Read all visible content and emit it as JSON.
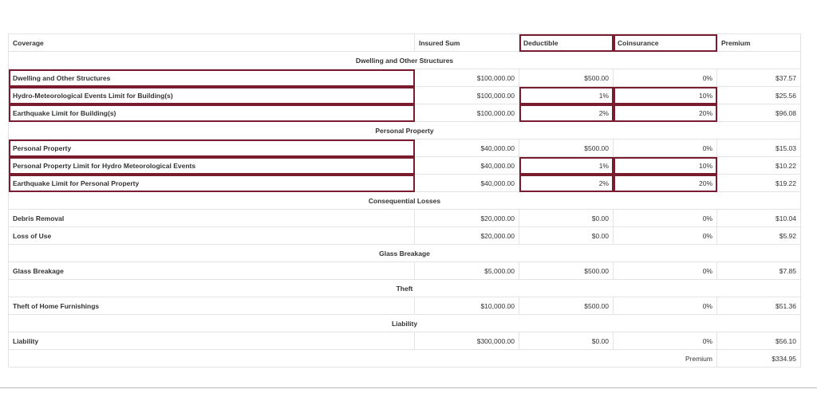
{
  "headers": {
    "coverage": "Coverage",
    "insured_sum": "Insured Sum",
    "deductible": "Deductible",
    "coinsurance": "Coinsurance",
    "premium": "Premium"
  },
  "sections": [
    {
      "title": "Dwelling and Other Structures",
      "rows": [
        {
          "name": "Dwelling and Other Structures",
          "insured": "$100,000.00",
          "deductible": "$500.00",
          "coinsurance": "0%",
          "premium": "$37.57"
        },
        {
          "name": "Hydro-Meteorological Events Limit for Building(s)",
          "insured": "$100,000.00",
          "deductible": "1%",
          "coinsurance": "10%",
          "premium": "$25.56"
        },
        {
          "name": "Earthquake Limit for Building(s)",
          "insured": "$100,000.00",
          "deductible": "2%",
          "coinsurance": "20%",
          "premium": "$96.08"
        }
      ]
    },
    {
      "title": "Personal Property",
      "rows": [
        {
          "name": "Personal Property",
          "insured": "$40,000.00",
          "deductible": "$500.00",
          "coinsurance": "0%",
          "premium": "$15.03"
        },
        {
          "name": "Personal Property Limit for Hydro Meteorological Events",
          "insured": "$40,000.00",
          "deductible": "1%",
          "coinsurance": "10%",
          "premium": "$10.22"
        },
        {
          "name": "Earthquake Limit for Personal Property",
          "insured": "$40,000.00",
          "deductible": "2%",
          "coinsurance": "20%",
          "premium": "$19.22"
        }
      ]
    },
    {
      "title": "Consequential Losses",
      "rows": [
        {
          "name": "Debris Removal",
          "insured": "$20,000.00",
          "deductible": "$0.00",
          "coinsurance": "0%",
          "premium": "$10.04"
        },
        {
          "name": "Loss of Use",
          "insured": "$20,000.00",
          "deductible": "$0.00",
          "coinsurance": "0%",
          "premium": "$5.92"
        }
      ]
    },
    {
      "title": "Glass Breakage",
      "rows": [
        {
          "name": "Glass Breakage",
          "insured": "$5,000.00",
          "deductible": "$500.00",
          "coinsurance": "0%",
          "premium": "$7.85"
        }
      ]
    },
    {
      "title": "Theft",
      "rows": [
        {
          "name": "Theft of Home Furnishings",
          "insured": "$10,000.00",
          "deductible": "$500.00",
          "coinsurance": "0%",
          "premium": "$51.36"
        }
      ]
    },
    {
      "title": "Liability",
      "rows": [
        {
          "name": "Liability",
          "insured": "$300,000.00",
          "deductible": "$0.00",
          "coinsurance": "0%",
          "premium": "$56.10"
        }
      ]
    }
  ],
  "total": {
    "label": "Premium",
    "value": "$334.95"
  },
  "highlight_color": "#7b1c2e"
}
